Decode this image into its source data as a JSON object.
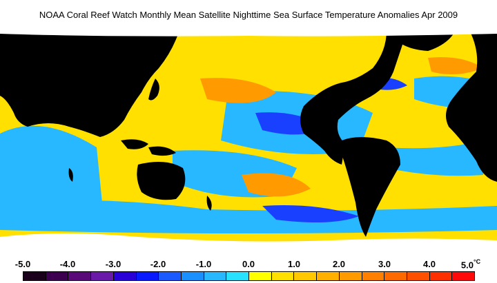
{
  "title": "NOAA Coral Reef Watch Monthly Mean Satellite Nighttime Sea Surface Temperature Anomalies    Apr 2009",
  "legend": {
    "tick_labels": [
      "-5.0",
      "-4.0",
      "-3.0",
      "-2.0",
      "-1.0",
      "0.0",
      "1.0",
      "2.0",
      "3.0",
      "4.0",
      "5.0"
    ],
    "unit": "°C",
    "colors": [
      "#1a001a",
      "#3d0050",
      "#5a0a78",
      "#6a1aa8",
      "#2a00d8",
      "#0a1aff",
      "#1a5aff",
      "#1a90ff",
      "#28b8ff",
      "#28e0ff",
      "#ffff00",
      "#ffe000",
      "#ffc800",
      "#ffb000",
      "#ff9a00",
      "#ff8000",
      "#ff6a00",
      "#ff5000",
      "#ff3000",
      "#ff0a0a"
    ]
  },
  "map": {
    "land_color": "#000000",
    "ice_color": "#ffffff",
    "ocean_cool_color": "#28b8ff",
    "ocean_warm_color": "#ffe000",
    "anomaly_hot_color": "#ff8000",
    "anomaly_cold_color": "#1a40ff"
  }
}
